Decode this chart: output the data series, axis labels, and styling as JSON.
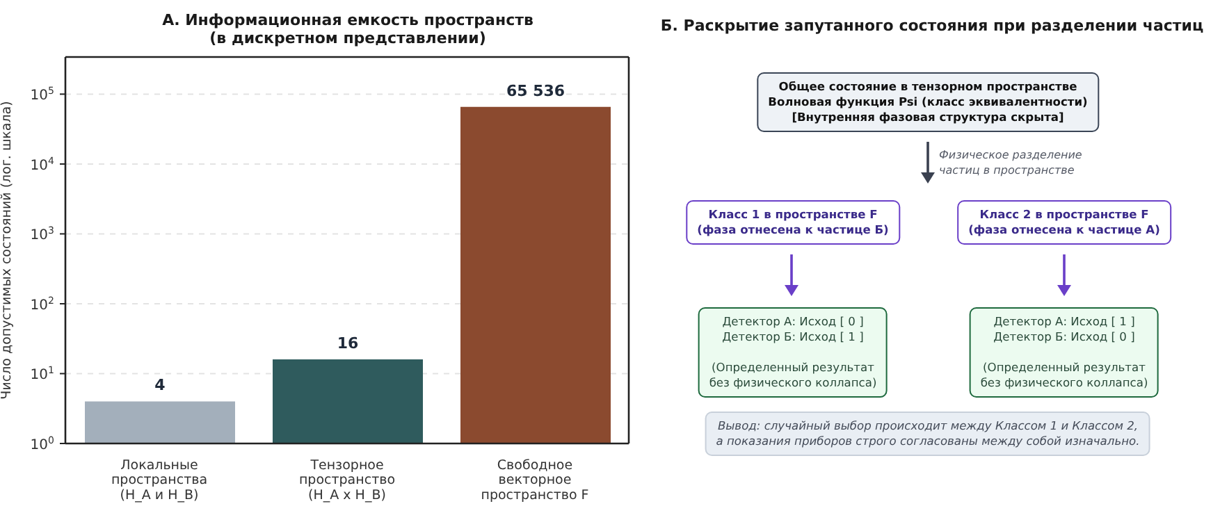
{
  "chart_data": [
    {
      "type": "bar",
      "title": "А. Информационная емкость пространств\n(в дискретном представлении)",
      "ylabel": "Число допустимых состояний (лог. шкала)",
      "categories": [
        "Локальные\nпространства\n(H_A и H_B)",
        "Тензорное\nпространство\n(H_A x H_B)",
        "Свободное\nвекторное\nпространство F"
      ],
      "values": [
        4,
        16,
        65536
      ],
      "colors": [
        "#a3afbb",
        "#2f5b5d",
        "#8b4a2f"
      ],
      "value_labels": [
        "4",
        "16",
        "65 536"
      ],
      "log": "y",
      "ylim": [
        1,
        340000
      ],
      "yticks": [
        {
          "value": 1,
          "label": "10$^{0}$"
        },
        {
          "value": 10,
          "label": "10$^{1}$"
        },
        {
          "value": 100,
          "label": "10$^{2}$"
        },
        {
          "value": 1000,
          "label": "10$^{3}$"
        },
        {
          "value": 10000,
          "label": "10$^{4}$"
        },
        {
          "value": 100000,
          "label": "10$^{5}$"
        }
      ],
      "grid": "y"
    },
    {
      "type": "other",
      "title": "Б. Раскрытие запутанного состояния при разделении частиц",
      "annotations": [
        "Общее состояние в тензорном пространстве\nВолновая функция Psi (класс эквивалентности)\n[Внутренняя фазовая структура скрыта]",
        "Физическое разделение\nчастиц в пространстве",
        "Класс 1 в пространстве F\n(фаза отнесена к частице Б)",
        "Класс 2 в пространстве F\n(фаза отнесена к частице А)",
        "Детектор А: Исход [ 0 ]\nДетектор Б: Исход [ 1 ]\n\n(Определенный результат\nбез физического коллапса)",
        "Детектор А: Исход [ 1 ]\nДетектор Б: Исход [ 0 ]\n\n(Определенный результат\nбез физического коллапса)",
        "Вывод: случайный выбор происходит между Классом 1 и Классом 2,\nа показания приборов строго согласованы между собой изначально."
      ]
    }
  ]
}
